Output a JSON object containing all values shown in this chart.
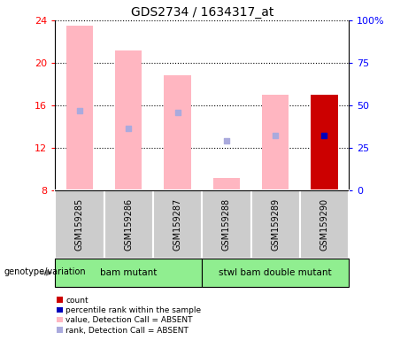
{
  "title": "GDS2734 / 1634317_at",
  "samples": [
    "GSM159285",
    "GSM159286",
    "GSM159287",
    "GSM159288",
    "GSM159289",
    "GSM159290"
  ],
  "bar_heights": [
    23.5,
    21.2,
    18.8,
    9.2,
    17.0,
    17.0
  ],
  "bar_color": "#FFB6C1",
  "rank_dots": [
    15.5,
    13.8,
    15.3,
    12.7,
    13.2,
    13.2
  ],
  "rank_dot_color": "#AAAADD",
  "last_bar_color": "#CC0000",
  "last_rank_dot_color": "#0000BB",
  "ymin": 8,
  "ymax": 24,
  "yticks_left": [
    8,
    12,
    16,
    20,
    24
  ],
  "yticks_right_vals": [
    0,
    25,
    50,
    75,
    100
  ],
  "yticks_right_labels": [
    "0",
    "25",
    "50",
    "75",
    "100%"
  ],
  "bar_width": 0.55,
  "group1_name": "bam mutant",
  "group1_indices": [
    0,
    1,
    2
  ],
  "group2_name": "stwl bam double mutant",
  "group2_indices": [
    3,
    4,
    5
  ],
  "group_color": "#90EE90",
  "sample_box_color": "#CCCCCC",
  "legend_items": [
    {
      "label": "count",
      "color": "#CC0000"
    },
    {
      "label": "percentile rank within the sample",
      "color": "#0000BB"
    },
    {
      "label": "value, Detection Call = ABSENT",
      "color": "#FFB6C1"
    },
    {
      "label": "rank, Detection Call = ABSENT",
      "color": "#AAAADD"
    }
  ],
  "genotype_label": "genotype/variation"
}
